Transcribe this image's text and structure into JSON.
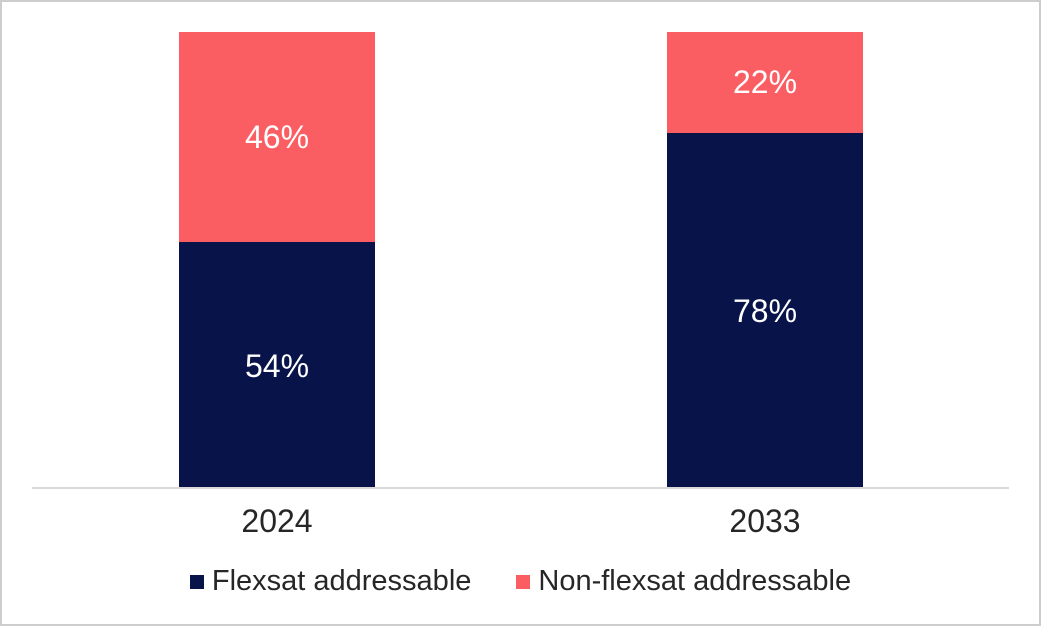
{
  "chart_data": {
    "type": "bar",
    "subtype": "stacked-100-percent-column",
    "title": "",
    "xlabel": "",
    "ylabel": "",
    "ylim": [
      0,
      100
    ],
    "grid": false,
    "legend_position": "bottom",
    "categories": [
      "2024",
      "2033"
    ],
    "series": [
      {
        "name": "Flexsat addressable",
        "color": "#081349",
        "values": [
          54,
          78
        ],
        "labels": [
          "54%",
          "78%"
        ]
      },
      {
        "name": "Non-flexsat addressable",
        "color": "#FB5E62",
        "values": [
          46,
          22
        ],
        "labels": [
          "46%",
          "22%"
        ]
      }
    ],
    "data_label_color": "#FFFFFF",
    "axis_line_color": "#D9D9D9",
    "tick_label_color": "#262626",
    "frame_border_color": "#CDCDCD",
    "background_color": "#FFFFFF"
  }
}
